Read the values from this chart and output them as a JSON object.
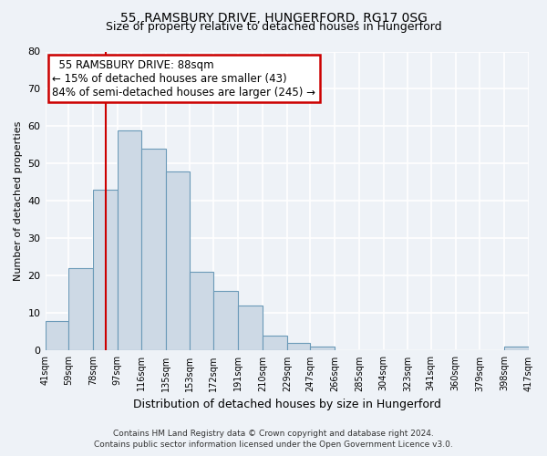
{
  "title1": "55, RAMSBURY DRIVE, HUNGERFORD, RG17 0SG",
  "title2": "Size of property relative to detached houses in Hungerford",
  "xlabel": "Distribution of detached houses by size in Hungerford",
  "ylabel": "Number of detached properties",
  "bins": [
    41,
    59,
    78,
    97,
    116,
    135,
    153,
    172,
    191,
    210,
    229,
    247,
    266,
    285,
    304,
    323,
    341,
    360,
    379,
    398,
    417
  ],
  "counts": [
    8,
    22,
    43,
    59,
    54,
    48,
    21,
    16,
    12,
    4,
    2,
    1,
    0,
    0,
    0,
    0,
    0,
    0,
    0,
    1
  ],
  "bar_color": "#cdd9e5",
  "bar_edge_color": "#6b9ab8",
  "vline_x": 88,
  "vline_color": "#cc0000",
  "annotation_title": "55 RAMSBURY DRIVE: 88sqm",
  "annotation_line1": "← 15% of detached houses are smaller (43)",
  "annotation_line2": "84% of semi-detached houses are larger (245) →",
  "annotation_box_color": "#ffffff",
  "annotation_box_edge": "#cc0000",
  "tick_labels": [
    "41sqm",
    "59sqm",
    "78sqm",
    "97sqm",
    "116sqm",
    "135sqm",
    "153sqm",
    "172sqm",
    "191sqm",
    "210sqm",
    "229sqm",
    "247sqm",
    "266sqm",
    "285sqm",
    "304sqm",
    "323sqm",
    "341sqm",
    "360sqm",
    "379sqm",
    "398sqm",
    "417sqm"
  ],
  "ylim": [
    0,
    80
  ],
  "yticks": [
    0,
    10,
    20,
    30,
    40,
    50,
    60,
    70,
    80
  ],
  "footer1": "Contains HM Land Registry data © Crown copyright and database right 2024.",
  "footer2": "Contains public sector information licensed under the Open Government Licence v3.0.",
  "background_color": "#eef2f7",
  "grid_color": "#ffffff",
  "title1_fontsize": 10,
  "title2_fontsize": 9,
  "ylabel_fontsize": 8,
  "xlabel_fontsize": 9,
  "annotation_fontsize": 8.5,
  "footer_fontsize": 6.5
}
